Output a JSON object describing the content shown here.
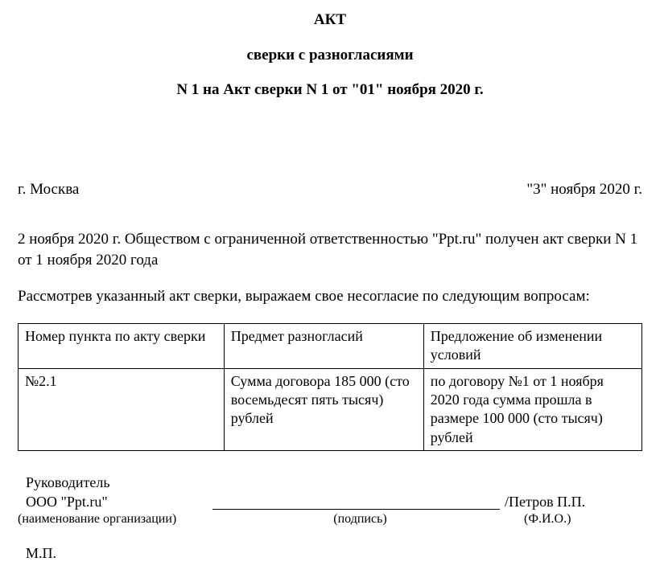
{
  "title": {
    "line1": "АКТ",
    "line2": "сверки с разногласиями",
    "line3": "N 1 на Акт сверки N 1 от \"01\" ноября 2020 г."
  },
  "meta": {
    "city": "г. Москва",
    "date": "\"3\" ноября  2020 г."
  },
  "body": {
    "para1": "2 ноября 2020 г. Обществом с ограниченной ответственностью  \"Ppt.ru\" получен акт сверки N 1 от 1 ноября 2020 года",
    "para2": "Рассмотрев указанный акт сверки, выражаем свое несогласие по следующим вопросам:"
  },
  "table": {
    "columns": [
      "Номер пункта по акту сверки",
      "Предмет разногласий",
      "Предложение об изменении условий"
    ],
    "rows": [
      [
        "№2.1",
        "Сумма договора 185 000 (сто восемьдесят пять тысяч) рублей",
        "по договору №1 от 1 ноября 2020 года сумма прошла в размере 100 000 (сто тысяч) рублей"
      ]
    ],
    "border_color": "#000000",
    "background_color": "#ffffff"
  },
  "signatures": {
    "role": " Руководитель",
    "org": "ООО \"Ppt.ru\"",
    "org_caption": "(наименование организации)",
    "name": "/Петров П.П.",
    "sign_caption": "(подпись)",
    "fio_caption": "(Ф.И.О.)",
    "mp": "М.П."
  },
  "typography": {
    "font_family": "Times New Roman",
    "title_fontsize": 19,
    "body_fontsize": 19,
    "table_fontsize": 18,
    "caption_fontsize": 16,
    "text_color": "#000000",
    "background_color": "#ffffff"
  }
}
